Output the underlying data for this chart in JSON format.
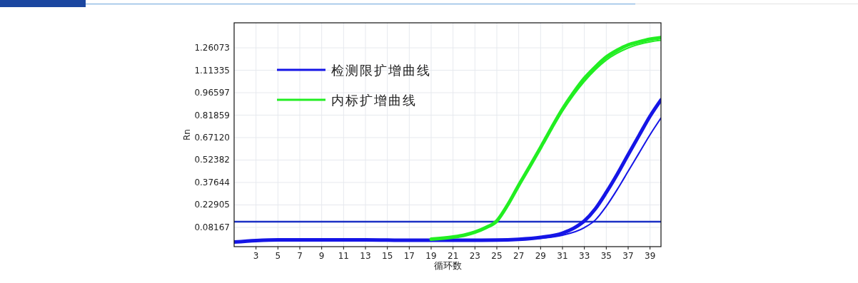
{
  "chart_data": {
    "type": "line",
    "xlabel": "循环数",
    "ylabel": "Rn",
    "xlim": [
      1,
      40
    ],
    "xticks": [
      3,
      5,
      7,
      9,
      11,
      13,
      15,
      17,
      19,
      21,
      23,
      25,
      27,
      29,
      31,
      33,
      35,
      37,
      39
    ],
    "ylim": [
      -0.045,
      1.425
    ],
    "yticks": [
      0.08167,
      0.22905,
      0.37644,
      0.52382,
      {
        "value": 0.6712,
        "label": "0.67120"
      },
      0.81859,
      0.96597,
      1.11335,
      1.26073
    ],
    "grid": true,
    "legend": "top left",
    "marker": "none",
    "line_style": "solid",
    "ref_lines": [
      {
        "axis": "y",
        "value": 0.119,
        "color": "#1a2fc4"
      }
    ],
    "series": [
      {
        "name": "检测限扩增曲线",
        "color": "#1515e6",
        "x": [
          1,
          3,
          5,
          9,
          13,
          17,
          21,
          25,
          27,
          29,
          31,
          32,
          33,
          34,
          35,
          36,
          37,
          38,
          39,
          40
        ],
        "values": [
          -0.015,
          -0.005,
          0.0,
          0.0,
          0.0,
          -0.003,
          -0.003,
          -0.002,
          0.003,
          0.016,
          0.044,
          0.075,
          0.124,
          0.203,
          0.311,
          0.43,
          0.559,
          0.686,
          0.812,
          0.919
        ]
      },
      {
        "color": "#1515e6",
        "x": [
          27,
          29,
          31,
          33,
          34,
          35,
          36,
          37,
          38,
          39,
          40
        ],
        "values": [
          0.0,
          0.01,
          0.03,
          0.08,
          0.13,
          0.22,
          0.33,
          0.45,
          0.57,
          0.69,
          0.8
        ]
      },
      {
        "name": "内标扩增曲线",
        "color": "#22ee22",
        "x": [
          19,
          21,
          22,
          23,
          24,
          25,
          26,
          27,
          28,
          29,
          30,
          31,
          32,
          33,
          34,
          35,
          36,
          37,
          38,
          39,
          40
        ],
        "values": [
          0.004,
          0.018,
          0.03,
          0.05,
          0.08,
          0.124,
          0.23,
          0.358,
          0.48,
          0.606,
          0.735,
          0.858,
          0.965,
          1.06,
          1.135,
          1.2,
          1.245,
          1.28,
          1.3,
          1.317,
          1.328
        ]
      },
      {
        "color": "#22ee22",
        "x": [
          29,
          31,
          33,
          35,
          37,
          39,
          40
        ],
        "values": [
          0.6,
          0.845,
          1.04,
          1.18,
          1.26,
          1.3,
          1.31
        ]
      }
    ]
  }
}
